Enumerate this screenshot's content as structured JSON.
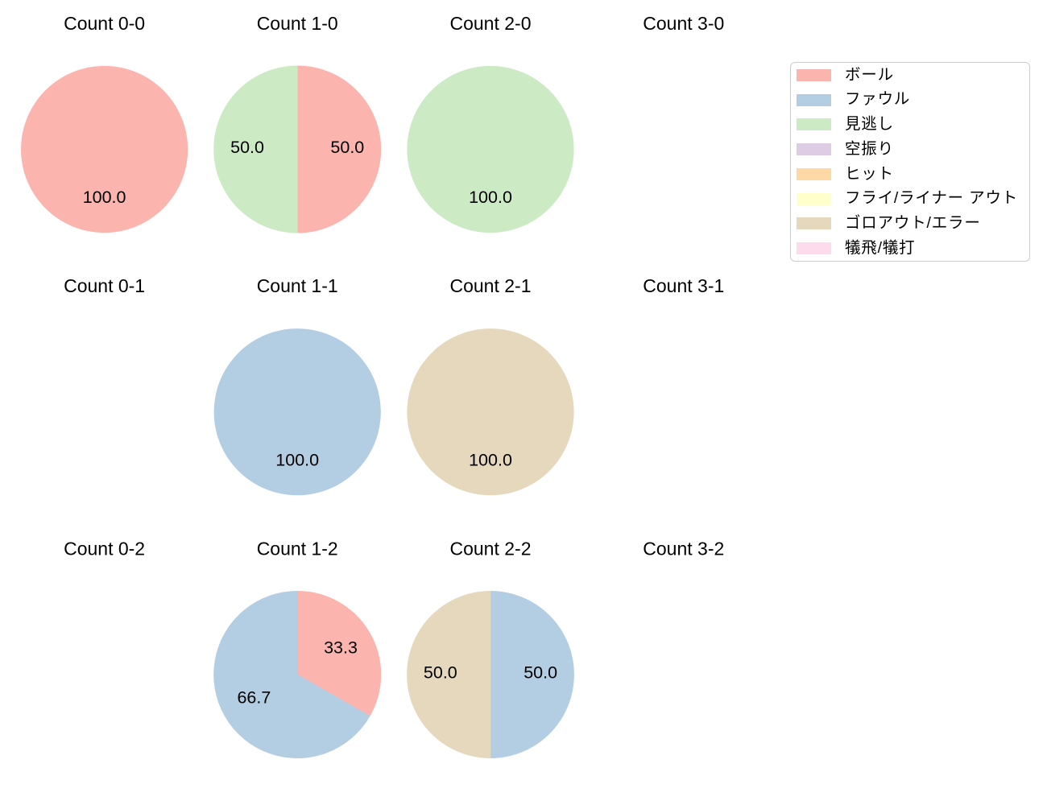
{
  "figure": {
    "background_color": "#ffffff",
    "text_color": "#000000"
  },
  "chart_data": {
    "type": "pie",
    "layout": "grid",
    "grid": {
      "rows": 3,
      "cols": 4
    },
    "pie_style": {
      "start_angle_deg": 90,
      "direction": "clockwise",
      "pct_distance": 0.6,
      "autopct_format": "%.1f"
    },
    "legend": {
      "position": "upper right",
      "border_color": "#cccccc",
      "background_color": "#ffffff",
      "entries": [
        {
          "label": "ボール",
          "color": "#fbb4ae"
        },
        {
          "label": "ファウル",
          "color": "#b3cde3"
        },
        {
          "label": "見逃し",
          "color": "#ccebc5"
        },
        {
          "label": "空振り",
          "color": "#decbe4"
        },
        {
          "label": "ヒット",
          "color": "#fed9a6"
        },
        {
          "label": "フライ/ライナー アウト",
          "color": "#ffffcc"
        },
        {
          "label": "ゴロアウト/エラー",
          "color": "#e5d8bd"
        },
        {
          "label": "犠飛/犠打",
          "color": "#fddaec"
        }
      ]
    },
    "subplots": [
      {
        "title": "Count 0-0",
        "row": 0,
        "col": 0,
        "slices": [
          {
            "category": "ボール",
            "value": 100.0,
            "label": "100.0"
          }
        ]
      },
      {
        "title": "Count 1-0",
        "row": 0,
        "col": 1,
        "slices": [
          {
            "category": "ボール",
            "value": 50.0,
            "label": "50.0"
          },
          {
            "category": "見逃し",
            "value": 50.0,
            "label": "50.0"
          }
        ]
      },
      {
        "title": "Count 2-0",
        "row": 0,
        "col": 2,
        "slices": [
          {
            "category": "見逃し",
            "value": 100.0,
            "label": "100.0"
          }
        ]
      },
      {
        "title": "Count 3-0",
        "row": 0,
        "col": 3,
        "slices": []
      },
      {
        "title": "Count 0-1",
        "row": 1,
        "col": 0,
        "slices": []
      },
      {
        "title": "Count 1-1",
        "row": 1,
        "col": 1,
        "slices": [
          {
            "category": "ファウル",
            "value": 100.0,
            "label": "100.0"
          }
        ]
      },
      {
        "title": "Count 2-1",
        "row": 1,
        "col": 2,
        "slices": [
          {
            "category": "ゴロアウト/エラー",
            "value": 100.0,
            "label": "100.0"
          }
        ]
      },
      {
        "title": "Count 3-1",
        "row": 1,
        "col": 3,
        "slices": []
      },
      {
        "title": "Count 0-2",
        "row": 2,
        "col": 0,
        "slices": []
      },
      {
        "title": "Count 1-2",
        "row": 2,
        "col": 1,
        "slices": [
          {
            "category": "ボール",
            "value": 33.3,
            "label": "33.3"
          },
          {
            "category": "ファウル",
            "value": 66.7,
            "label": "66.7"
          }
        ]
      },
      {
        "title": "Count 2-2",
        "row": 2,
        "col": 2,
        "slices": [
          {
            "category": "ファウル",
            "value": 50.0,
            "label": "50.0"
          },
          {
            "category": "ゴロアウト/エラー",
            "value": 50.0,
            "label": "50.0"
          }
        ]
      },
      {
        "title": "Count 3-2",
        "row": 2,
        "col": 3,
        "slices": []
      }
    ]
  }
}
